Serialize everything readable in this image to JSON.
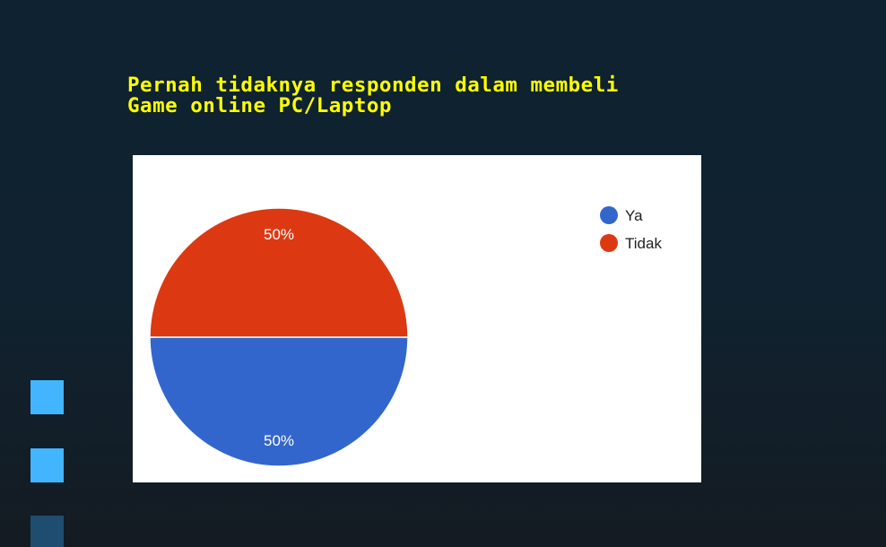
{
  "slide": {
    "title_line1": "Pernah tidaknya responden dalam membeli",
    "title_line2": "Game online PC/Laptop"
  },
  "colors": {
    "title": "#ffff00",
    "background": "#10222f",
    "accent_square": "#43b5ff",
    "accent_square_dark": "#1f4d6f"
  },
  "chart_data": {
    "type": "pie",
    "title": "",
    "legend_position": "top-right",
    "slices": [
      {
        "label": "Ya",
        "value": 50,
        "display": "50%",
        "color": "#3366cc"
      },
      {
        "label": "Tidak",
        "value": 50,
        "display": "50%",
        "color": "#dc3912"
      }
    ]
  }
}
